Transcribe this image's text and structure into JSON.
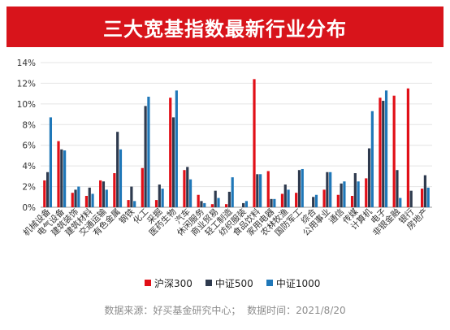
{
  "title": "三大宽基指数最新行业分布",
  "footer": {
    "source": "数据来源：好买基金研究中心；",
    "time": "数据时间：2021/8/20"
  },
  "colors": {
    "banner": "#d8141b",
    "series": [
      "#e10f17",
      "#2e3a4e",
      "#1f77b8"
    ],
    "grid": "#e4e4e4",
    "axis": "#999999"
  },
  "chart_data": {
    "type": "bar",
    "ylim": [
      0,
      14
    ],
    "yticks": [
      0,
      2,
      4,
      6,
      8,
      10,
      12,
      14
    ],
    "y_tick_suffix": "%",
    "grid": true,
    "legend_position": "bottom",
    "categories": [
      "机械设备",
      "电气设备",
      "建筑装饰",
      "建筑材料",
      "交通运输",
      "有色金属",
      "钢铁",
      "化工",
      "采掘",
      "医药生物",
      "汽车",
      "休闲服务",
      "商业贸易",
      "轻工制造",
      "纺织服装",
      "食品饮料",
      "家用电器",
      "农林牧渔",
      "国防军工",
      "综合",
      "公用事业",
      "通信",
      "传媒",
      "计算机",
      "电子",
      "非银金融",
      "银行",
      "房地产"
    ],
    "series": [
      {
        "name": "沪深300",
        "values": [
          2.6,
          6.4,
          1.4,
          1.1,
          2.6,
          3.3,
          0.7,
          3.8,
          0.7,
          10.6,
          3.6,
          1.2,
          0.3,
          0.3,
          0.0,
          12.4,
          3.5,
          1.3,
          1.4,
          0.0,
          1.7,
          1.2,
          1.1,
          2.8,
          10.6,
          10.8,
          11.5,
          1.8
        ]
      },
      {
        "name": "中证500",
        "values": [
          3.4,
          5.6,
          1.7,
          1.9,
          2.5,
          7.3,
          2.0,
          9.8,
          2.2,
          8.7,
          3.9,
          0.6,
          1.6,
          1.5,
          0.4,
          3.2,
          0.8,
          2.2,
          3.6,
          1.0,
          3.4,
          2.3,
          3.3,
          5.7,
          10.3,
          3.6,
          1.6,
          3.1
        ]
      },
      {
        "name": "中证1000",
        "values": [
          8.7,
          5.5,
          2.0,
          1.3,
          1.7,
          5.6,
          0.6,
          10.7,
          1.8,
          11.3,
          2.7,
          0.4,
          0.9,
          2.9,
          0.6,
          3.2,
          0.8,
          1.7,
          3.7,
          1.2,
          3.4,
          2.5,
          2.5,
          9.3,
          11.3,
          0.9,
          0.0,
          1.9
        ]
      }
    ]
  }
}
